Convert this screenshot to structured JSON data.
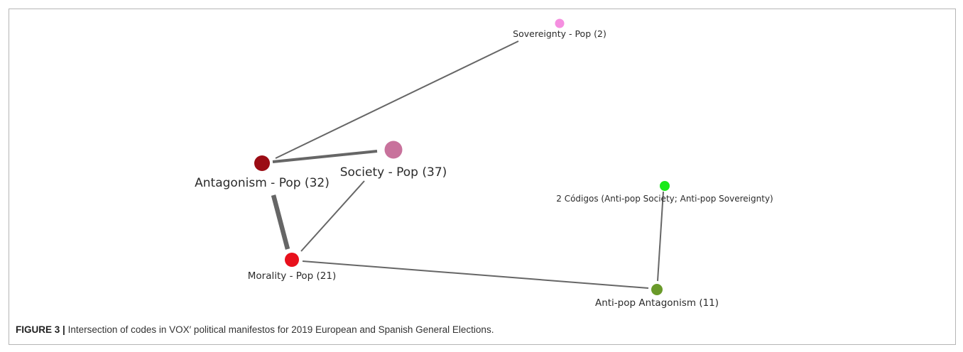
{
  "figure": {
    "caption_label": "FIGURE 3 |",
    "caption_text": "Intersection of codes in VOX′ political manifestos for 2019 European and Spanish General Elections."
  },
  "network": {
    "nodes": [
      {
        "id": "sovereignty",
        "label": "Sovereignty - Pop (2)",
        "color": "#f58fe0"
      },
      {
        "id": "antagonism",
        "label": "Antagonism - Pop (32)",
        "color": "#9b0c14"
      },
      {
        "id": "society",
        "label": "Society - Pop (37)",
        "color": "#c8729c"
      },
      {
        "id": "codigos",
        "label": "2 Códigos (Anti-pop Society; Anti-pop Sovereignty)",
        "color": "#18ea18"
      },
      {
        "id": "morality",
        "label": "Morality - Pop (21)",
        "color": "#e8101c"
      },
      {
        "id": "antipop_antagonism",
        "label": "Anti-pop Antagonism (11)",
        "color": "#6a9a2a"
      }
    ],
    "edges": [
      {
        "source": "antagonism",
        "target": "sovereignty",
        "weight": 1
      },
      {
        "source": "antagonism",
        "target": "society",
        "weight": 2
      },
      {
        "source": "antagonism",
        "target": "morality",
        "weight": 3
      },
      {
        "source": "society",
        "target": "morality",
        "weight": 1
      },
      {
        "source": "morality",
        "target": "antipop_antagonism",
        "weight": 1
      },
      {
        "source": "codigos",
        "target": "antipop_antagonism",
        "weight": 1
      }
    ],
    "edge_color": "#666666"
  }
}
